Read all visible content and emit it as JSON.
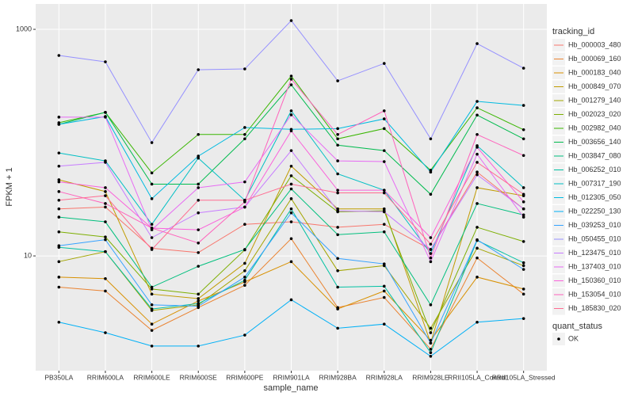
{
  "chart_data": {
    "type": "line",
    "x_label": "sample_name",
    "y_label": "FPKM + 1",
    "log_y": true,
    "grid": true,
    "ylim": [
      0.97,
      1675
    ],
    "yticks": [
      10,
      1000
    ],
    "categories": [
      "PB350LA",
      "RRIM600LA",
      "RRIM600LE",
      "RRIM600SE",
      "RRIM600PE",
      "RRIM901LA",
      "RRIM928BA",
      "RRIM928LA",
      "RRIM928LE",
      "RRII105LA_Control",
      "RRII105LA_Stressed"
    ],
    "legend_title": "tracking_id",
    "point_legend": {
      "title": "quant_status",
      "labels": [
        "OK"
      ],
      "color": "#000000"
    },
    "series": [
      {
        "name": "Hb_000003_480",
        "color": "#F8766D",
        "values": [
          26,
          27,
          11.7,
          10.7,
          19,
          20,
          17.9,
          19,
          11.4,
          55,
          26
        ]
      },
      {
        "name": "Hb_000069_160",
        "color": "#EA8331",
        "values": [
          5.3,
          4.9,
          2.2,
          3.5,
          5.5,
          14.2,
          3.5,
          4.3,
          1.5,
          9.6,
          4.6
        ]
      },
      {
        "name": "Hb_000183_040",
        "color": "#D89000",
        "values": [
          6.5,
          6.3,
          2.5,
          4.0,
          5.9,
          8.9,
          3.4,
          4.9,
          1.8,
          6.5,
          5.1
        ]
      },
      {
        "name": "Hb_000849_070",
        "color": "#C09B00",
        "values": [
          47,
          37,
          4.6,
          4.2,
          8.6,
          62,
          26,
          26,
          1.7,
          40,
          34
        ]
      },
      {
        "name": "Hb_001279_140",
        "color": "#A3A500",
        "values": [
          8.9,
          10.9,
          3.3,
          3.7,
          7.4,
          32,
          7.4,
          8.2,
          2.3,
          11.7,
          8.2
        ]
      },
      {
        "name": "Hb_002023_020",
        "color": "#7CAE00",
        "values": [
          16.3,
          14.7,
          5.1,
          4.6,
          11.3,
          51,
          24.5,
          25,
          2.1,
          17.9,
          13.4
        ]
      },
      {
        "name": "Hb_002982_040",
        "color": "#39B600",
        "values": [
          150,
          185,
          54,
          118,
          118,
          387,
          108,
          133,
          57,
          203,
          130
        ]
      },
      {
        "name": "Hb_003656_140",
        "color": "#00BB4E",
        "values": [
          145,
          185,
          43,
          43,
          108,
          324,
          95,
          85,
          35,
          175,
          108
        ]
      },
      {
        "name": "Hb_003847_080",
        "color": "#00BF7D",
        "values": [
          22,
          20,
          5.3,
          8.1,
          11.4,
          39,
          15.4,
          16.3,
          3.7,
          29,
          23
        ]
      },
      {
        "name": "Hb_006252_010",
        "color": "#00C1A3",
        "values": [
          11.9,
          10.9,
          3.4,
          3.8,
          6.1,
          26,
          5.3,
          5.4,
          1.4,
          13.7,
          8.7
        ]
      },
      {
        "name": "Hb_007317_190",
        "color": "#00BFC4",
        "values": [
          81,
          69,
          19,
          73,
          31,
          191,
          53,
          38,
          10.5,
          94,
          40
        ]
      },
      {
        "name": "Hb_012305_050",
        "color": "#00BAE0",
        "values": [
          145,
          170,
          32,
          76,
          136,
          131,
          133,
          162,
          55,
          231,
          213
        ]
      },
      {
        "name": "Hb_022250_130",
        "color": "#00B0F6",
        "values": [
          2.6,
          2.1,
          1.6,
          1.6,
          2.0,
          4.1,
          2.3,
          2.5,
          1.3,
          2.6,
          2.8
        ]
      },
      {
        "name": "Hb_039253_010",
        "color": "#35A2FF",
        "values": [
          12.3,
          13.9,
          3.7,
          3.6,
          6.5,
          24,
          9.5,
          8.5,
          1.7,
          13.9,
          7.6
        ]
      },
      {
        "name": "Hb_050455_010",
        "color": "#9590FF",
        "values": [
          588,
          517,
          100,
          440,
          447,
          1194,
          351,
          500,
          108,
          748,
          454
        ]
      },
      {
        "name": "Hb_123475_010",
        "color": "#C77CFF",
        "values": [
          62,
          67,
          14.5,
          24,
          27,
          85,
          25,
          24.5,
          11.4,
          52,
          26
        ]
      },
      {
        "name": "Hb_137403_010",
        "color": "#E76BF3",
        "values": [
          168,
          168,
          17,
          40,
          45,
          176,
          69,
          68,
          8.9,
          79,
          22
        ]
      },
      {
        "name": "Hb_150360_010",
        "color": "#FA62DB",
        "values": [
          45,
          40,
          17.6,
          17,
          27,
          127,
          38,
          38,
          14.5,
          91,
          30
        ]
      },
      {
        "name": "Hb_153054_010",
        "color": "#FF62BC",
        "values": [
          37,
          29,
          17.6,
          13,
          30,
          363,
          118,
          191,
          9.6,
          118,
          77
        ]
      },
      {
        "name": "Hb_185830_020",
        "color": "#FF6C91",
        "values": [
          31,
          34,
          11.4,
          31,
          31,
          43,
          36,
          36,
          12.7,
          67,
          35
        ]
      }
    ]
  }
}
